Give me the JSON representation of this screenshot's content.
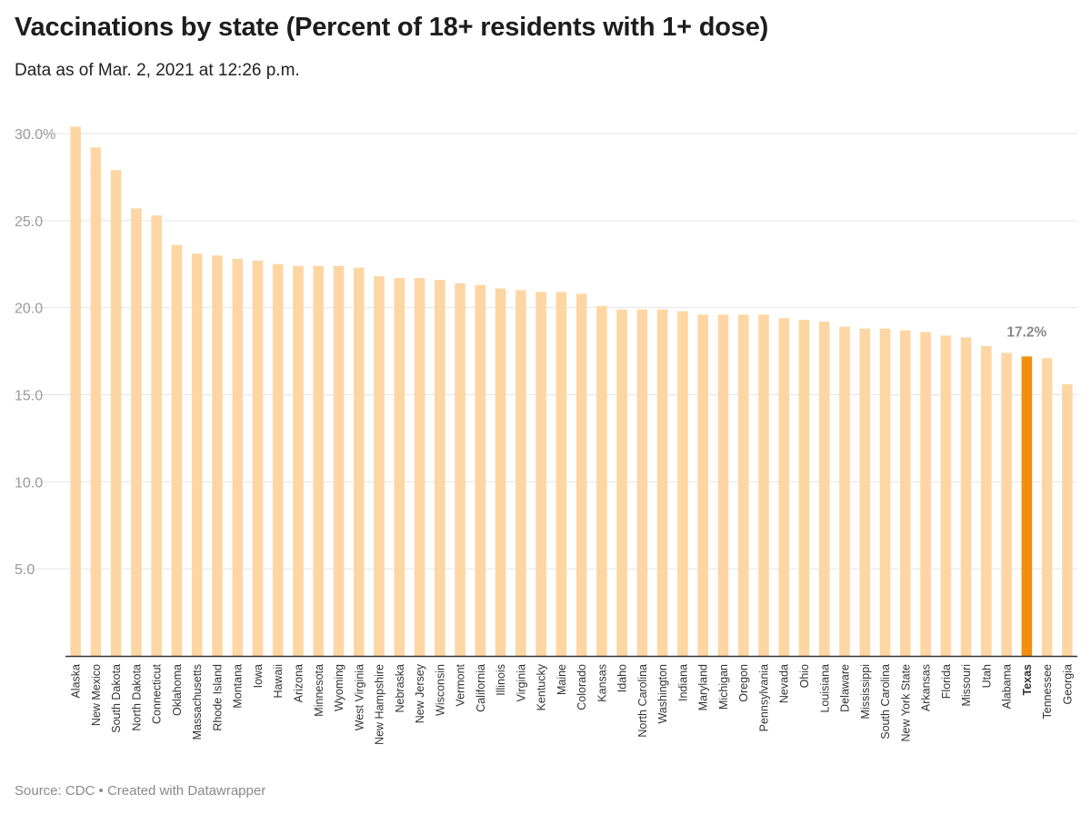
{
  "title": "Vaccinations by state (Percent of 18+ residents with 1+ dose)",
  "subtitle": "Data as of Mar. 2, 2021 at 12:26 p.m.",
  "footer": "Source: CDC • Created with Datawrapper",
  "colors": {
    "bar": "#fdd6a3",
    "highlight": "#f38e10",
    "grid": "#e5e5e5",
    "axis": "#333333"
  },
  "chart_data": {
    "type": "bar",
    "title": "Vaccinations by state (Percent of 18+ residents with 1+ dose)",
    "xlabel": "",
    "ylabel": "",
    "ylim": [
      0,
      30
    ],
    "yticks": [
      5,
      10,
      15,
      20,
      25,
      30
    ],
    "ytick_labels": [
      "5.0",
      "10.0",
      "15.0",
      "20.0",
      "25.0",
      "30.0%"
    ],
    "grid": true,
    "highlight": "Texas",
    "annotations": [
      {
        "category": "Texas",
        "text": "17.2%"
      }
    ],
    "categories": [
      "Alaska",
      "New Mexico",
      "South Dakota",
      "North Dakota",
      "Connecticut",
      "Oklahoma",
      "Massachusetts",
      "Rhode Island",
      "Montana",
      "Iowa",
      "Hawaii",
      "Arizona",
      "Minnesota",
      "Wyoming",
      "West Virginia",
      "New Hampshire",
      "Nebraska",
      "New Jersey",
      "Wisconsin",
      "Vermont",
      "California",
      "Illinois",
      "Virginia",
      "Kentucky",
      "Maine",
      "Colorado",
      "Kansas",
      "Idaho",
      "North Carolina",
      "Washington",
      "Indiana",
      "Maryland",
      "Michigan",
      "Oregon",
      "Pennsylvania",
      "Nevada",
      "Ohio",
      "Louisiana",
      "Delaware",
      "Mississippi",
      "South Carolina",
      "New York State",
      "Arkansas",
      "Florida",
      "Missouri",
      "Utah",
      "Alabama",
      "Texas",
      "Tennessee",
      "Georgia"
    ],
    "values": [
      30.4,
      29.2,
      27.9,
      25.7,
      25.3,
      23.6,
      23.1,
      23.0,
      22.8,
      22.7,
      22.5,
      22.4,
      22.4,
      22.4,
      22.3,
      21.8,
      21.7,
      21.7,
      21.6,
      21.4,
      21.3,
      21.1,
      21.0,
      20.9,
      20.9,
      20.8,
      20.1,
      19.9,
      19.9,
      19.9,
      19.8,
      19.6,
      19.6,
      19.6,
      19.6,
      19.4,
      19.3,
      19.2,
      18.9,
      18.8,
      18.8,
      18.7,
      18.6,
      18.4,
      18.3,
      17.8,
      17.4,
      17.2,
      17.1,
      15.6
    ]
  }
}
